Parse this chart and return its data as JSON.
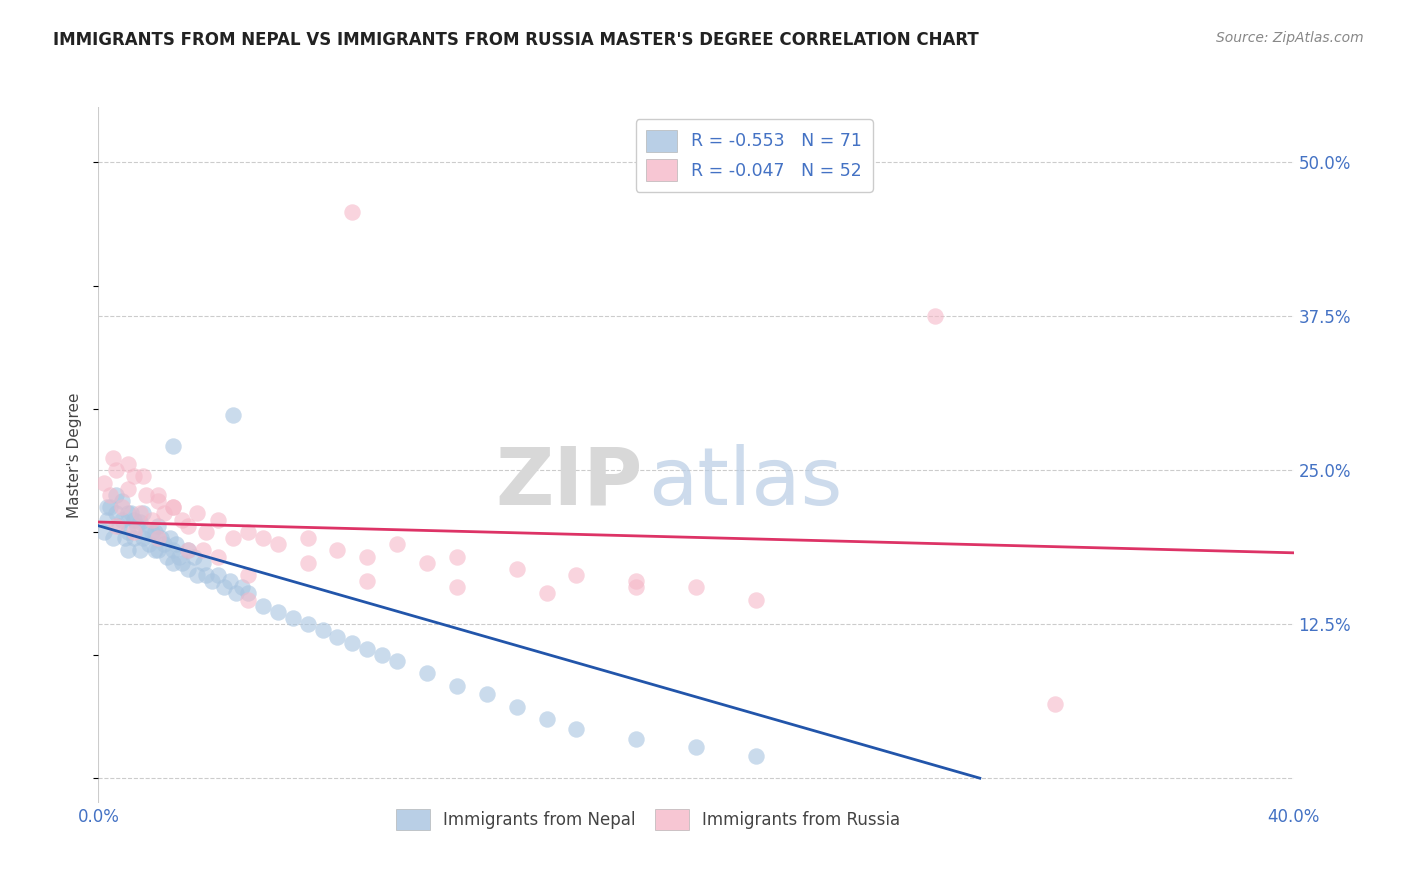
{
  "title": "IMMIGRANTS FROM NEPAL VS IMMIGRANTS FROM RUSSIA MASTER'S DEGREE CORRELATION CHART",
  "source": "Source: ZipAtlas.com",
  "ylabel": "Master's Degree",
  "ytick_labels": [
    "",
    "12.5%",
    "25.0%",
    "37.5%",
    "50.0%"
  ],
  "ytick_values": [
    0.0,
    0.125,
    0.25,
    0.375,
    0.5
  ],
  "xlim": [
    0.0,
    0.4
  ],
  "ylim": [
    -0.02,
    0.545
  ],
  "legend_entries": [
    {
      "label": "R = -0.553   N = 71",
      "color": "#a8c4e0"
    },
    {
      "label": "R = -0.047   N = 52",
      "color": "#f5b8c8"
    }
  ],
  "nepal_color": "#a8c4e0",
  "russia_color": "#f5b8c8",
  "nepal_line_color": "#2255aa",
  "russia_line_color": "#dd3366",
  "watermark_zip": "ZIP",
  "watermark_atlas": "atlas",
  "nepal_scatter_x": [
    0.002,
    0.003,
    0.004,
    0.005,
    0.006,
    0.007,
    0.008,
    0.009,
    0.01,
    0.01,
    0.01,
    0.012,
    0.012,
    0.013,
    0.014,
    0.015,
    0.015,
    0.016,
    0.017,
    0.018,
    0.019,
    0.02,
    0.02,
    0.021,
    0.022,
    0.023,
    0.024,
    0.025,
    0.025,
    0.026,
    0.027,
    0.028,
    0.03,
    0.03,
    0.032,
    0.033,
    0.035,
    0.036,
    0.038,
    0.04,
    0.042,
    0.044,
    0.046,
    0.048,
    0.05,
    0.055,
    0.06,
    0.065,
    0.07,
    0.075,
    0.08,
    0.085,
    0.09,
    0.095,
    0.1,
    0.11,
    0.12,
    0.13,
    0.14,
    0.15,
    0.16,
    0.18,
    0.2,
    0.22,
    0.003,
    0.006,
    0.008,
    0.011,
    0.014,
    0.019,
    0.025
  ],
  "nepal_scatter_y": [
    0.2,
    0.21,
    0.22,
    0.195,
    0.215,
    0.205,
    0.21,
    0.195,
    0.215,
    0.2,
    0.185,
    0.21,
    0.195,
    0.205,
    0.185,
    0.215,
    0.195,
    0.2,
    0.19,
    0.2,
    0.185,
    0.205,
    0.185,
    0.195,
    0.19,
    0.18,
    0.195,
    0.185,
    0.175,
    0.19,
    0.18,
    0.175,
    0.185,
    0.17,
    0.18,
    0.165,
    0.175,
    0.165,
    0.16,
    0.165,
    0.155,
    0.16,
    0.15,
    0.155,
    0.15,
    0.14,
    0.135,
    0.13,
    0.125,
    0.12,
    0.115,
    0.11,
    0.105,
    0.1,
    0.095,
    0.085,
    0.075,
    0.068,
    0.058,
    0.048,
    0.04,
    0.032,
    0.025,
    0.018,
    0.22,
    0.23,
    0.225,
    0.215,
    0.208,
    0.2,
    0.27
  ],
  "russia_scatter_x": [
    0.002,
    0.004,
    0.006,
    0.008,
    0.01,
    0.012,
    0.014,
    0.016,
    0.018,
    0.02,
    0.022,
    0.025,
    0.028,
    0.03,
    0.033,
    0.036,
    0.04,
    0.045,
    0.05,
    0.055,
    0.06,
    0.07,
    0.08,
    0.09,
    0.1,
    0.11,
    0.12,
    0.14,
    0.16,
    0.18,
    0.2,
    0.22,
    0.005,
    0.01,
    0.015,
    0.02,
    0.025,
    0.03,
    0.04,
    0.05,
    0.07,
    0.09,
    0.12,
    0.15,
    0.18,
    0.006,
    0.012,
    0.02,
    0.035,
    0.05,
    0.28,
    0.32
  ],
  "russia_scatter_y": [
    0.24,
    0.23,
    0.25,
    0.22,
    0.235,
    0.245,
    0.215,
    0.23,
    0.21,
    0.225,
    0.215,
    0.22,
    0.21,
    0.205,
    0.215,
    0.2,
    0.21,
    0.195,
    0.2,
    0.195,
    0.19,
    0.195,
    0.185,
    0.18,
    0.19,
    0.175,
    0.18,
    0.17,
    0.165,
    0.16,
    0.155,
    0.145,
    0.26,
    0.255,
    0.245,
    0.23,
    0.22,
    0.185,
    0.18,
    0.165,
    0.175,
    0.16,
    0.155,
    0.15,
    0.155,
    0.205,
    0.2,
    0.195,
    0.185,
    0.145,
    0.375,
    0.06
  ],
  "nepal_line_x": [
    0.0,
    0.295
  ],
  "nepal_line_y": [
    0.205,
    0.0
  ],
  "russia_line_x": [
    0.0,
    0.4
  ],
  "russia_line_y": [
    0.208,
    0.183
  ],
  "russia_outlier_x": [
    0.085
  ],
  "russia_outlier_y": [
    0.46
  ],
  "nepal_outlier_x": [
    0.045
  ],
  "nepal_outlier_y": [
    0.295
  ]
}
